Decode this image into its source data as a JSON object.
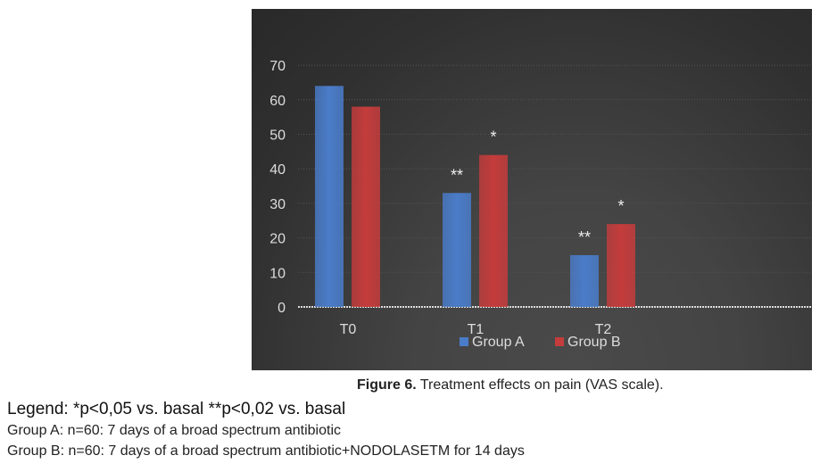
{
  "chart_data": {
    "type": "bar",
    "categories": [
      "T0",
      "T1",
      "T2"
    ],
    "series": [
      {
        "name": "Group A",
        "color": "#4a7cc9",
        "values": [
          64,
          33,
          15
        ],
        "annotations": [
          "",
          "**",
          "**"
        ]
      },
      {
        "name": "Group B",
        "color": "#c43c3c",
        "values": [
          58,
          44,
          24
        ],
        "annotations": [
          "",
          "*",
          "*"
        ]
      }
    ],
    "yticks": [
      0,
      10,
      20,
      30,
      40,
      50,
      60,
      70
    ],
    "ylim": [
      0,
      75
    ],
    "grid": true,
    "legend": "bottom"
  },
  "caption": {
    "label": "Figure 6.",
    "text": " Treatment effects on pain (VAS scale)."
  },
  "legend_text": "Legend: *p<0,05 vs. basal  **p<0,02 vs. basal",
  "group_a": "Group A: n=60: 7 days of a broad spectrum antibiotic",
  "group_b": "Group B: n=60: 7 days of a broad spectrum antibiotic+NODOLASETM for 14 days"
}
